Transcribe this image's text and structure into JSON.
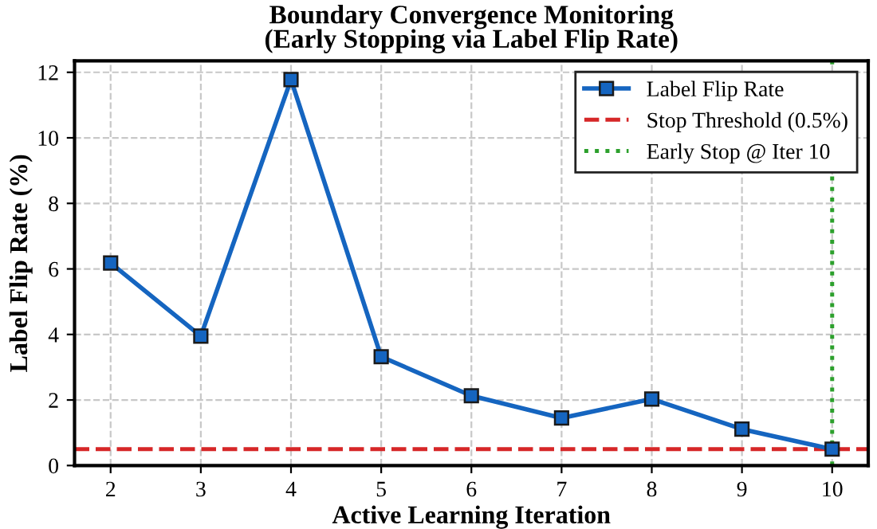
{
  "chart_data": {
    "type": "line",
    "title": "Boundary Convergence Monitoring\n(Early Stopping via Label Flip Rate)",
    "xlabel": "Active Learning Iteration",
    "ylabel": "Label Flip Rate (%)",
    "x": [
      2,
      3,
      4,
      5,
      6,
      7,
      8,
      9,
      10
    ],
    "series": [
      {
        "name": "Label Flip Rate",
        "color": "#1565c0",
        "values": [
          6.18,
          3.95,
          11.78,
          3.32,
          2.13,
          1.45,
          2.03,
          1.11,
          0.5
        ]
      }
    ],
    "marker": "square",
    "line_style": "solid",
    "ref_lines": [
      {
        "axis": "y",
        "value": 0.5,
        "label": "Stop Threshold (0.5%)",
        "color": "#d62728",
        "line_style": "dashed"
      },
      {
        "axis": "x",
        "value": 10,
        "label": "Early Stop @ Iter 10",
        "color": "#2ca02c",
        "line_style": "dotted"
      }
    ],
    "xlim": [
      1.6,
      10.4
    ],
    "ylim": [
      0,
      12.35
    ],
    "xticks": [
      2,
      3,
      4,
      5,
      6,
      7,
      8,
      9,
      10
    ],
    "yticks": [
      0,
      2,
      4,
      6,
      8,
      10,
      12
    ],
    "grid": true,
    "legend": "top right"
  }
}
